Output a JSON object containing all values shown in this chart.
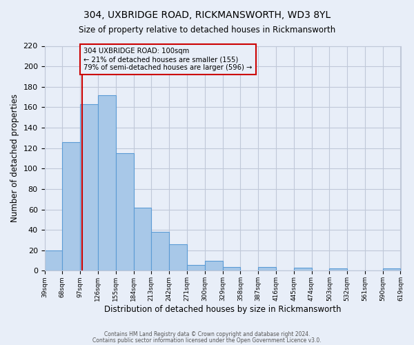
{
  "title1": "304, UXBRIDGE ROAD, RICKMANSWORTH, WD3 8YL",
  "title2": "Size of property relative to detached houses in Rickmansworth",
  "xlabel": "Distribution of detached houses by size in Rickmansworth",
  "ylabel": "Number of detached properties",
  "footer1": "Contains HM Land Registry data © Crown copyright and database right 2024.",
  "footer2": "Contains public sector information licensed under the Open Government Licence v3.0.",
  "bin_labels": [
    "39sqm",
    "68sqm",
    "97sqm",
    "126sqm",
    "155sqm",
    "184sqm",
    "213sqm",
    "242sqm",
    "271sqm",
    "300sqm",
    "329sqm",
    "358sqm",
    "387sqm",
    "416sqm",
    "445sqm",
    "474sqm",
    "503sqm",
    "532sqm",
    "561sqm",
    "590sqm",
    "619sqm"
  ],
  "bar_heights": [
    20,
    126,
    163,
    172,
    115,
    62,
    38,
    26,
    6,
    10,
    4,
    0,
    4,
    0,
    3,
    0,
    2,
    0,
    0,
    2
  ],
  "bin_edges": [
    39,
    68,
    97,
    126,
    155,
    184,
    213,
    242,
    271,
    300,
    329,
    358,
    387,
    416,
    445,
    474,
    503,
    532,
    561,
    590,
    619
  ],
  "bar_color": "#a8c8e8",
  "bar_edge_color": "#5b9bd5",
  "bg_color": "#e8eef8",
  "grid_color": "#c0c8d8",
  "vline_x": 100,
  "vline_color": "#cc0000",
  "annotation_text": "304 UXBRIDGE ROAD: 100sqm\n← 21% of detached houses are smaller (155)\n79% of semi-detached houses are larger (596) →",
  "annotation_box_color": "#cc0000",
  "ylim": [
    0,
    220
  ],
  "yticks": [
    0,
    20,
    40,
    60,
    80,
    100,
    120,
    140,
    160,
    180,
    200,
    220
  ]
}
